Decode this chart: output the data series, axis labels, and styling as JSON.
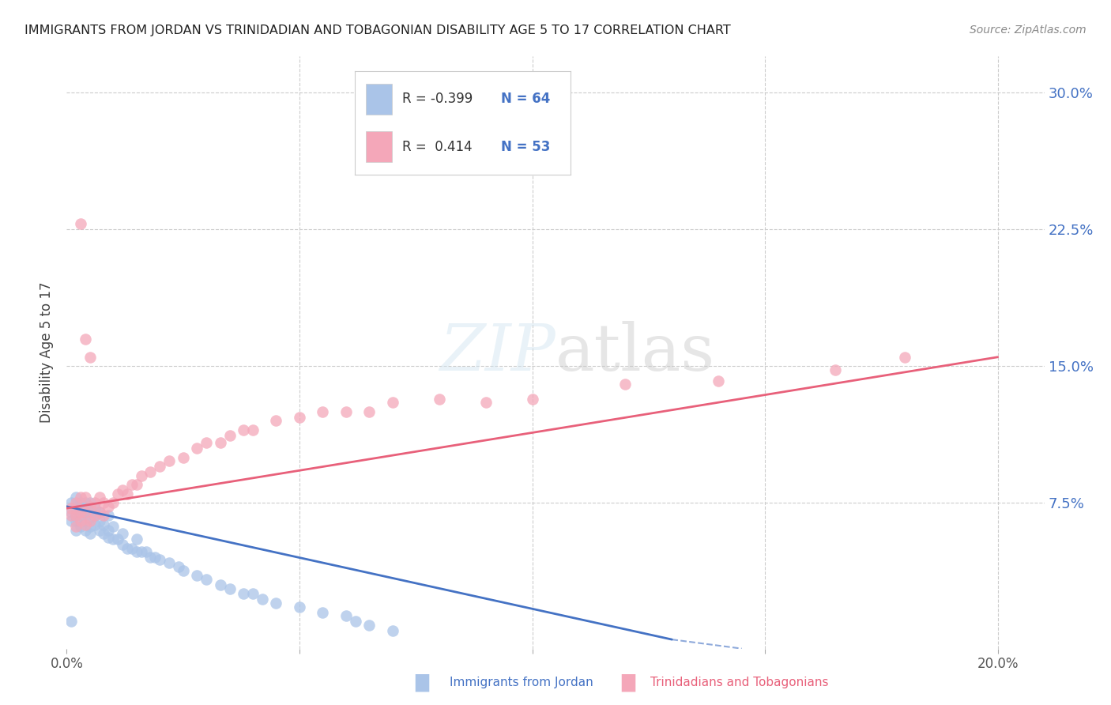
{
  "title": "IMMIGRANTS FROM JORDAN VS TRINIDADIAN AND TOBAGONIAN DISABILITY AGE 5 TO 17 CORRELATION CHART",
  "source": "Source: ZipAtlas.com",
  "ylabel": "Disability Age 5 to 17",
  "xlim": [
    0.0,
    0.21
  ],
  "ylim": [
    -0.005,
    0.32
  ],
  "grid_color": "#cccccc",
  "background_color": "#ffffff",
  "jordan_color": "#aac4e8",
  "jordan_line_color": "#4472c4",
  "trini_color": "#f4a7b9",
  "trini_line_color": "#e8607a",
  "legend_R_jordan": "-0.399",
  "legend_N_jordan": "64",
  "legend_R_trini": "0.414",
  "legend_N_trini": "53",
  "jordan_line": [
    0.0,
    0.073,
    0.13,
    0.0
  ],
  "trini_line": [
    0.0,
    0.072,
    0.2,
    0.155
  ],
  "jordan_x": [
    0.001,
    0.001,
    0.001,
    0.002,
    0.002,
    0.002,
    0.002,
    0.002,
    0.003,
    0.003,
    0.003,
    0.003,
    0.004,
    0.004,
    0.004,
    0.004,
    0.005,
    0.005,
    0.005,
    0.005,
    0.005,
    0.006,
    0.006,
    0.006,
    0.007,
    0.007,
    0.007,
    0.008,
    0.008,
    0.009,
    0.009,
    0.009,
    0.01,
    0.01,
    0.011,
    0.012,
    0.012,
    0.013,
    0.014,
    0.015,
    0.015,
    0.016,
    0.017,
    0.018,
    0.019,
    0.02,
    0.022,
    0.024,
    0.025,
    0.028,
    0.03,
    0.033,
    0.035,
    0.038,
    0.04,
    0.042,
    0.045,
    0.05,
    0.055,
    0.06,
    0.062,
    0.065,
    0.07,
    0.001
  ],
  "jordan_y": [
    0.065,
    0.07,
    0.075,
    0.06,
    0.065,
    0.068,
    0.072,
    0.078,
    0.062,
    0.068,
    0.072,
    0.075,
    0.06,
    0.065,
    0.07,
    0.075,
    0.058,
    0.062,
    0.067,
    0.07,
    0.075,
    0.063,
    0.068,
    0.072,
    0.06,
    0.065,
    0.07,
    0.058,
    0.063,
    0.056,
    0.06,
    0.068,
    0.055,
    0.062,
    0.055,
    0.052,
    0.058,
    0.05,
    0.05,
    0.048,
    0.055,
    0.048,
    0.048,
    0.045,
    0.045,
    0.044,
    0.042,
    0.04,
    0.038,
    0.035,
    0.033,
    0.03,
    0.028,
    0.025,
    0.025,
    0.022,
    0.02,
    0.018,
    0.015,
    0.013,
    0.01,
    0.008,
    0.005,
    0.01
  ],
  "trini_x": [
    0.001,
    0.001,
    0.002,
    0.002,
    0.002,
    0.003,
    0.003,
    0.003,
    0.004,
    0.004,
    0.004,
    0.005,
    0.005,
    0.006,
    0.006,
    0.007,
    0.007,
    0.008,
    0.008,
    0.009,
    0.01,
    0.011,
    0.012,
    0.013,
    0.014,
    0.015,
    0.016,
    0.018,
    0.02,
    0.022,
    0.025,
    0.028,
    0.03,
    0.033,
    0.035,
    0.038,
    0.04,
    0.045,
    0.05,
    0.055,
    0.06,
    0.065,
    0.07,
    0.08,
    0.09,
    0.1,
    0.12,
    0.14,
    0.165,
    0.18,
    0.003,
    0.004,
    0.005
  ],
  "trini_y": [
    0.068,
    0.072,
    0.062,
    0.068,
    0.075,
    0.065,
    0.07,
    0.078,
    0.063,
    0.07,
    0.078,
    0.065,
    0.073,
    0.068,
    0.075,
    0.07,
    0.078,
    0.068,
    0.075,
    0.073,
    0.075,
    0.08,
    0.082,
    0.08,
    0.085,
    0.085,
    0.09,
    0.092,
    0.095,
    0.098,
    0.1,
    0.105,
    0.108,
    0.108,
    0.112,
    0.115,
    0.115,
    0.12,
    0.122,
    0.125,
    0.125,
    0.125,
    0.13,
    0.132,
    0.13,
    0.132,
    0.14,
    0.142,
    0.148,
    0.155,
    0.228,
    0.165,
    0.155
  ]
}
